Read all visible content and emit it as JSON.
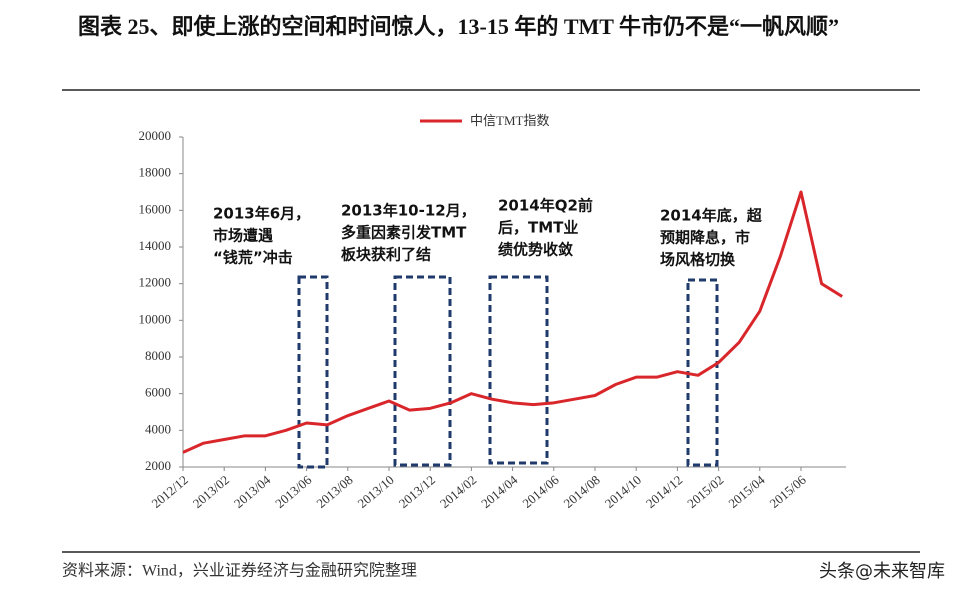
{
  "chart_data": {
    "type": "line",
    "title": "图表 25、即使上涨的空间和时间惊人，13-15 年的 TMT 牛市仍不是“一帆风顺”",
    "x": [
      "2012/12",
      "2013/01",
      "2013/02",
      "2013/03",
      "2013/04",
      "2013/05",
      "2013/06",
      "2013/07",
      "2013/08",
      "2013/09",
      "2013/10",
      "2013/11",
      "2013/12",
      "2014/01",
      "2014/02",
      "2014/03",
      "2014/04",
      "2014/05",
      "2014/06",
      "2014/07",
      "2014/08",
      "2014/09",
      "2014/10",
      "2014/11",
      "2014/12",
      "2015/01",
      "2015/02",
      "2015/03",
      "2015/04",
      "2015/05",
      "2015/06",
      "2015/07",
      "2015/08"
    ],
    "series": [
      {
        "name": "中信TMT指数",
        "color": "#d9262b",
        "values": [
          2800,
          3300,
          3500,
          3700,
          3700,
          4000,
          4400,
          4300,
          4800,
          5200,
          5600,
          5100,
          5200,
          5500,
          6000,
          5700,
          5500,
          5400,
          5500,
          5700,
          5900,
          6500,
          6900,
          6900,
          7200,
          7000,
          7700,
          8800,
          10500,
          13500,
          17000,
          12000,
          11300
        ]
      }
    ],
    "xticks": [
      "2012/12",
      "2013/02",
      "2013/04",
      "2013/06",
      "2013/08",
      "2013/10",
      "2013/12",
      "2014/02",
      "2014/04",
      "2014/06",
      "2014/08",
      "2014/10",
      "2014/12",
      "2015/02",
      "2015/04",
      "2015/06"
    ],
    "ylim": [
      2000,
      20000
    ],
    "yticks": [
      2000,
      4000,
      6000,
      8000,
      10000,
      12000,
      14000,
      16000,
      18000,
      20000
    ],
    "annotations": [
      {
        "lines": [
          "2013年6月，",
          "市场遭遇",
          "“钱荒”冲击"
        ]
      },
      {
        "lines": [
          "2013年10-12月，",
          "多重因素引发TMT",
          "板块获利了结"
        ]
      },
      {
        "lines": [
          "2014年Q2前",
          "后，TMT业",
          "绩优势收敛"
        ]
      },
      {
        "lines": [
          "2014年底，超",
          "预期降息，市",
          "场风格切换"
        ]
      }
    ],
    "source": "资料来源：Wind，兴业证券经济与金融研究院整理",
    "watermark": "头条@未来智库"
  }
}
